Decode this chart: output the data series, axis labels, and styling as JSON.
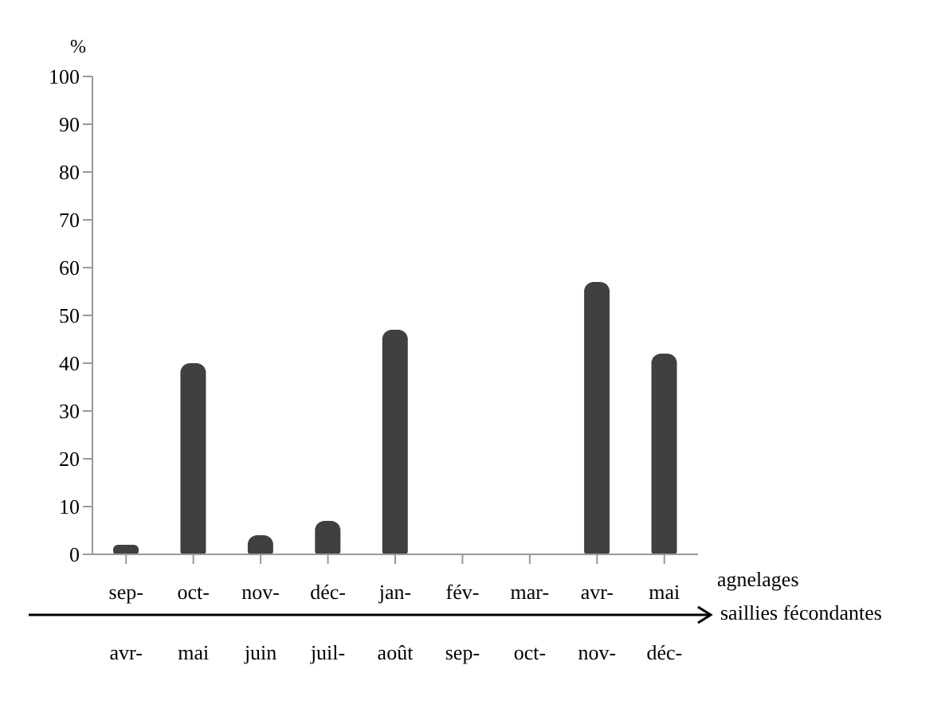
{
  "chart_data": {
    "type": "bar",
    "ylabel": "%",
    "xlabel": "agnelages",
    "categories": [
      "sep-",
      "oct-",
      "nov-",
      "déc-",
      "jan-",
      "fév-",
      "mar-",
      "avr-",
      "mai"
    ],
    "values": [
      2,
      40,
      4,
      7,
      47,
      0,
      0,
      57,
      42
    ],
    "color": "#404040",
    "ylim": [
      0,
      100
    ],
    "yticks": [
      0,
      10,
      20,
      30,
      40,
      50,
      60,
      70,
      80,
      90,
      100
    ],
    "grid": false,
    "annotations": [
      "saillies fécondantes",
      "avr-",
      "mai",
      "juin",
      "juil-",
      "août",
      "sep-",
      "oct-",
      "nov-",
      "déc-"
    ]
  }
}
